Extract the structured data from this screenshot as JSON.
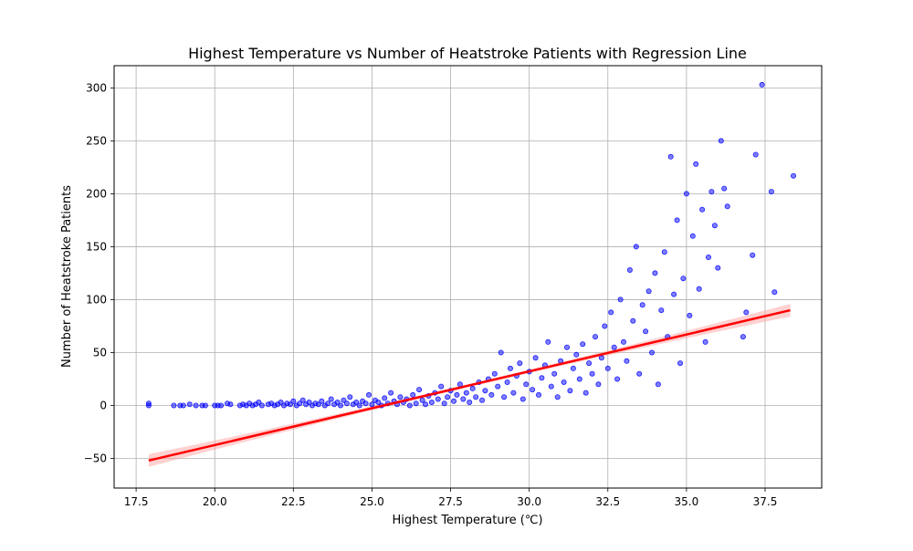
{
  "chart_data": {
    "type": "scatter",
    "title": "Highest Temperature vs Number of Heatstroke Patients with Regression Line",
    "xlabel": "Highest Temperature (℃)",
    "ylabel": "Number of Heatstroke Patients",
    "xlim": [
      16.8,
      39.3
    ],
    "ylim": [
      -78,
      321
    ],
    "xticks": [
      17.5,
      20.0,
      22.5,
      25.0,
      27.5,
      30.0,
      32.5,
      35.0,
      37.5
    ],
    "xtick_labels": [
      "17.5",
      "20.0",
      "22.5",
      "25.0",
      "27.5",
      "30.0",
      "32.5",
      "35.0",
      "37.5"
    ],
    "yticks": [
      -50,
      0,
      50,
      100,
      150,
      200,
      250,
      300
    ],
    "ytick_labels": [
      "−50",
      "0",
      "50",
      "100",
      "150",
      "200",
      "250",
      "300"
    ],
    "grid": true,
    "colors": {
      "points": "#0000ff",
      "line": "#ff0000",
      "band": "#ff9999"
    },
    "regression": {
      "x": [
        17.9,
        38.3
      ],
      "y": [
        -52,
        90
      ],
      "ci_halfwidth_ends": 6,
      "ci_halfwidth_mid": 1.5
    },
    "series": [
      {
        "points": [
          [
            17.9,
            0
          ],
          [
            17.9,
            2
          ],
          [
            18.7,
            0
          ],
          [
            18.9,
            0
          ],
          [
            19.0,
            0
          ],
          [
            19.2,
            1
          ],
          [
            19.4,
            0
          ],
          [
            19.6,
            0
          ],
          [
            19.7,
            0
          ],
          [
            20.0,
            0
          ],
          [
            20.1,
            0
          ],
          [
            20.2,
            0
          ],
          [
            20.4,
            2
          ],
          [
            20.5,
            1
          ],
          [
            20.8,
            0
          ],
          [
            20.9,
            1
          ],
          [
            21.0,
            0
          ],
          [
            21.1,
            2
          ],
          [
            21.2,
            0
          ],
          [
            21.3,
            1
          ],
          [
            21.4,
            3
          ],
          [
            21.5,
            0
          ],
          [
            21.7,
            1
          ],
          [
            21.8,
            2
          ],
          [
            21.9,
            0
          ],
          [
            22.0,
            1
          ],
          [
            22.1,
            3
          ],
          [
            22.2,
            0
          ],
          [
            22.3,
            2
          ],
          [
            22.4,
            1
          ],
          [
            22.5,
            4
          ],
          [
            22.6,
            0
          ],
          [
            22.7,
            2
          ],
          [
            22.8,
            5
          ],
          [
            22.9,
            1
          ],
          [
            23.0,
            3
          ],
          [
            23.1,
            0
          ],
          [
            23.2,
            2
          ],
          [
            23.3,
            1
          ],
          [
            23.4,
            4
          ],
          [
            23.5,
            0
          ],
          [
            23.6,
            2
          ],
          [
            23.7,
            6
          ],
          [
            23.8,
            1
          ],
          [
            23.9,
            3
          ],
          [
            24.0,
            0
          ],
          [
            24.1,
            5
          ],
          [
            24.2,
            2
          ],
          [
            24.3,
            8
          ],
          [
            24.4,
            1
          ],
          [
            24.5,
            3
          ],
          [
            24.6,
            0
          ],
          [
            24.7,
            4
          ],
          [
            24.8,
            2
          ],
          [
            24.9,
            10
          ],
          [
            25.0,
            1
          ],
          [
            25.1,
            5
          ],
          [
            25.2,
            3
          ],
          [
            25.3,
            0
          ],
          [
            25.4,
            7
          ],
          [
            25.5,
            2
          ],
          [
            25.6,
            12
          ],
          [
            25.7,
            4
          ],
          [
            25.8,
            1
          ],
          [
            25.9,
            8
          ],
          [
            26.0,
            3
          ],
          [
            26.1,
            6
          ],
          [
            26.2,
            0
          ],
          [
            26.3,
            10
          ],
          [
            26.4,
            2
          ],
          [
            26.5,
            15
          ],
          [
            26.6,
            5
          ],
          [
            26.7,
            1
          ],
          [
            26.8,
            9
          ],
          [
            26.9,
            3
          ],
          [
            27.0,
            12
          ],
          [
            27.1,
            6
          ],
          [
            27.2,
            18
          ],
          [
            27.3,
            2
          ],
          [
            27.4,
            8
          ],
          [
            27.5,
            14
          ],
          [
            27.6,
            4
          ],
          [
            27.7,
            10
          ],
          [
            27.8,
            20
          ],
          [
            27.9,
            6
          ],
          [
            28.0,
            12
          ],
          [
            28.1,
            3
          ],
          [
            28.2,
            16
          ],
          [
            28.3,
            8
          ],
          [
            28.4,
            22
          ],
          [
            28.5,
            5
          ],
          [
            28.6,
            14
          ],
          [
            28.7,
            25
          ],
          [
            28.8,
            10
          ],
          [
            28.9,
            30
          ],
          [
            29.0,
            18
          ],
          [
            29.1,
            50
          ],
          [
            29.2,
            8
          ],
          [
            29.3,
            22
          ],
          [
            29.4,
            35
          ],
          [
            29.5,
            12
          ],
          [
            29.6,
            28
          ],
          [
            29.7,
            40
          ],
          [
            29.8,
            6
          ],
          [
            29.9,
            20
          ],
          [
            30.0,
            32
          ],
          [
            30.1,
            15
          ],
          [
            30.2,
            45
          ],
          [
            30.3,
            10
          ],
          [
            30.4,
            26
          ],
          [
            30.5,
            38
          ],
          [
            30.6,
            60
          ],
          [
            30.7,
            18
          ],
          [
            30.8,
            30
          ],
          [
            30.9,
            8
          ],
          [
            31.0,
            42
          ],
          [
            31.1,
            22
          ],
          [
            31.2,
            55
          ],
          [
            31.3,
            14
          ],
          [
            31.4,
            35
          ],
          [
            31.5,
            48
          ],
          [
            31.6,
            25
          ],
          [
            31.7,
            58
          ],
          [
            31.8,
            12
          ],
          [
            31.9,
            40
          ],
          [
            32.0,
            30
          ],
          [
            32.1,
            65
          ],
          [
            32.2,
            20
          ],
          [
            32.3,
            45
          ],
          [
            32.4,
            75
          ],
          [
            32.5,
            35
          ],
          [
            32.6,
            88
          ],
          [
            32.7,
            55
          ],
          [
            32.8,
            25
          ],
          [
            32.9,
            100
          ],
          [
            33.0,
            60
          ],
          [
            33.1,
            42
          ],
          [
            33.2,
            128
          ],
          [
            33.3,
            80
          ],
          [
            33.4,
            150
          ],
          [
            33.5,
            30
          ],
          [
            33.6,
            95
          ],
          [
            33.7,
            70
          ],
          [
            33.8,
            108
          ],
          [
            33.9,
            50
          ],
          [
            34.0,
            125
          ],
          [
            34.1,
            20
          ],
          [
            34.2,
            90
          ],
          [
            34.3,
            145
          ],
          [
            34.4,
            65
          ],
          [
            34.5,
            235
          ],
          [
            34.6,
            105
          ],
          [
            34.7,
            175
          ],
          [
            34.8,
            40
          ],
          [
            34.9,
            120
          ],
          [
            35.0,
            200
          ],
          [
            35.1,
            85
          ],
          [
            35.2,
            160
          ],
          [
            35.3,
            228
          ],
          [
            35.4,
            110
          ],
          [
            35.5,
            185
          ],
          [
            35.6,
            60
          ],
          [
            35.7,
            140
          ],
          [
            35.8,
            202
          ],
          [
            35.9,
            170
          ],
          [
            36.0,
            130
          ],
          [
            36.1,
            250
          ],
          [
            36.2,
            205
          ],
          [
            36.3,
            188
          ],
          [
            36.8,
            65
          ],
          [
            36.9,
            88
          ],
          [
            37.1,
            142
          ],
          [
            37.2,
            237
          ],
          [
            37.4,
            303
          ],
          [
            37.7,
            202
          ],
          [
            37.8,
            107
          ],
          [
            38.4,
            217
          ]
        ]
      }
    ]
  }
}
